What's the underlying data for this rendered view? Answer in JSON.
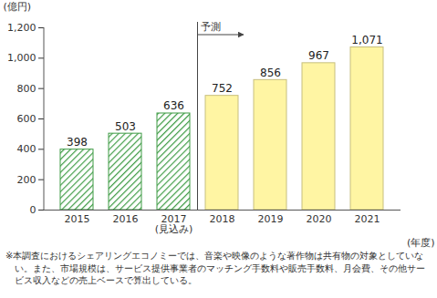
{
  "chart_data": {
    "type": "bar",
    "categories": [
      "2015",
      "2016",
      "2017\n(見込み)",
      "2018",
      "2019",
      "2020",
      "2021"
    ],
    "values": [
      398,
      503,
      636,
      752,
      856,
      967,
      1071
    ],
    "value_labels": [
      "398",
      "503",
      "636",
      "752",
      "856",
      "967",
      "1,071"
    ],
    "data_labels": true,
    "colors": [
      "#3e9b45",
      "#3e9b45",
      "#3e9b45",
      "#fff5a3",
      "#fff5a3",
      "#fff5a3",
      "#fff5a3"
    ],
    "ylabel": "(億円)",
    "xlabel": "(年度)",
    "ylim": [
      0,
      1200
    ],
    "yticks": [
      0,
      200,
      400,
      600,
      800,
      {
        "value": 1000,
        "label": "1,000"
      },
      {
        "value": 1200,
        "label": "1,200"
      }
    ],
    "grid": false,
    "annotations": [
      {
        "text": "予測",
        "from": "2018"
      }
    ],
    "note": "※本調査におけるシェアリングエコノミーでは、音楽や映像のような著作物は共有物の対象としていない。また、市場規模は、サービス提供事業者のマッチング手数料や販売手数料、月会費、その他サービス収入などの売上ベースで算出している。"
  }
}
